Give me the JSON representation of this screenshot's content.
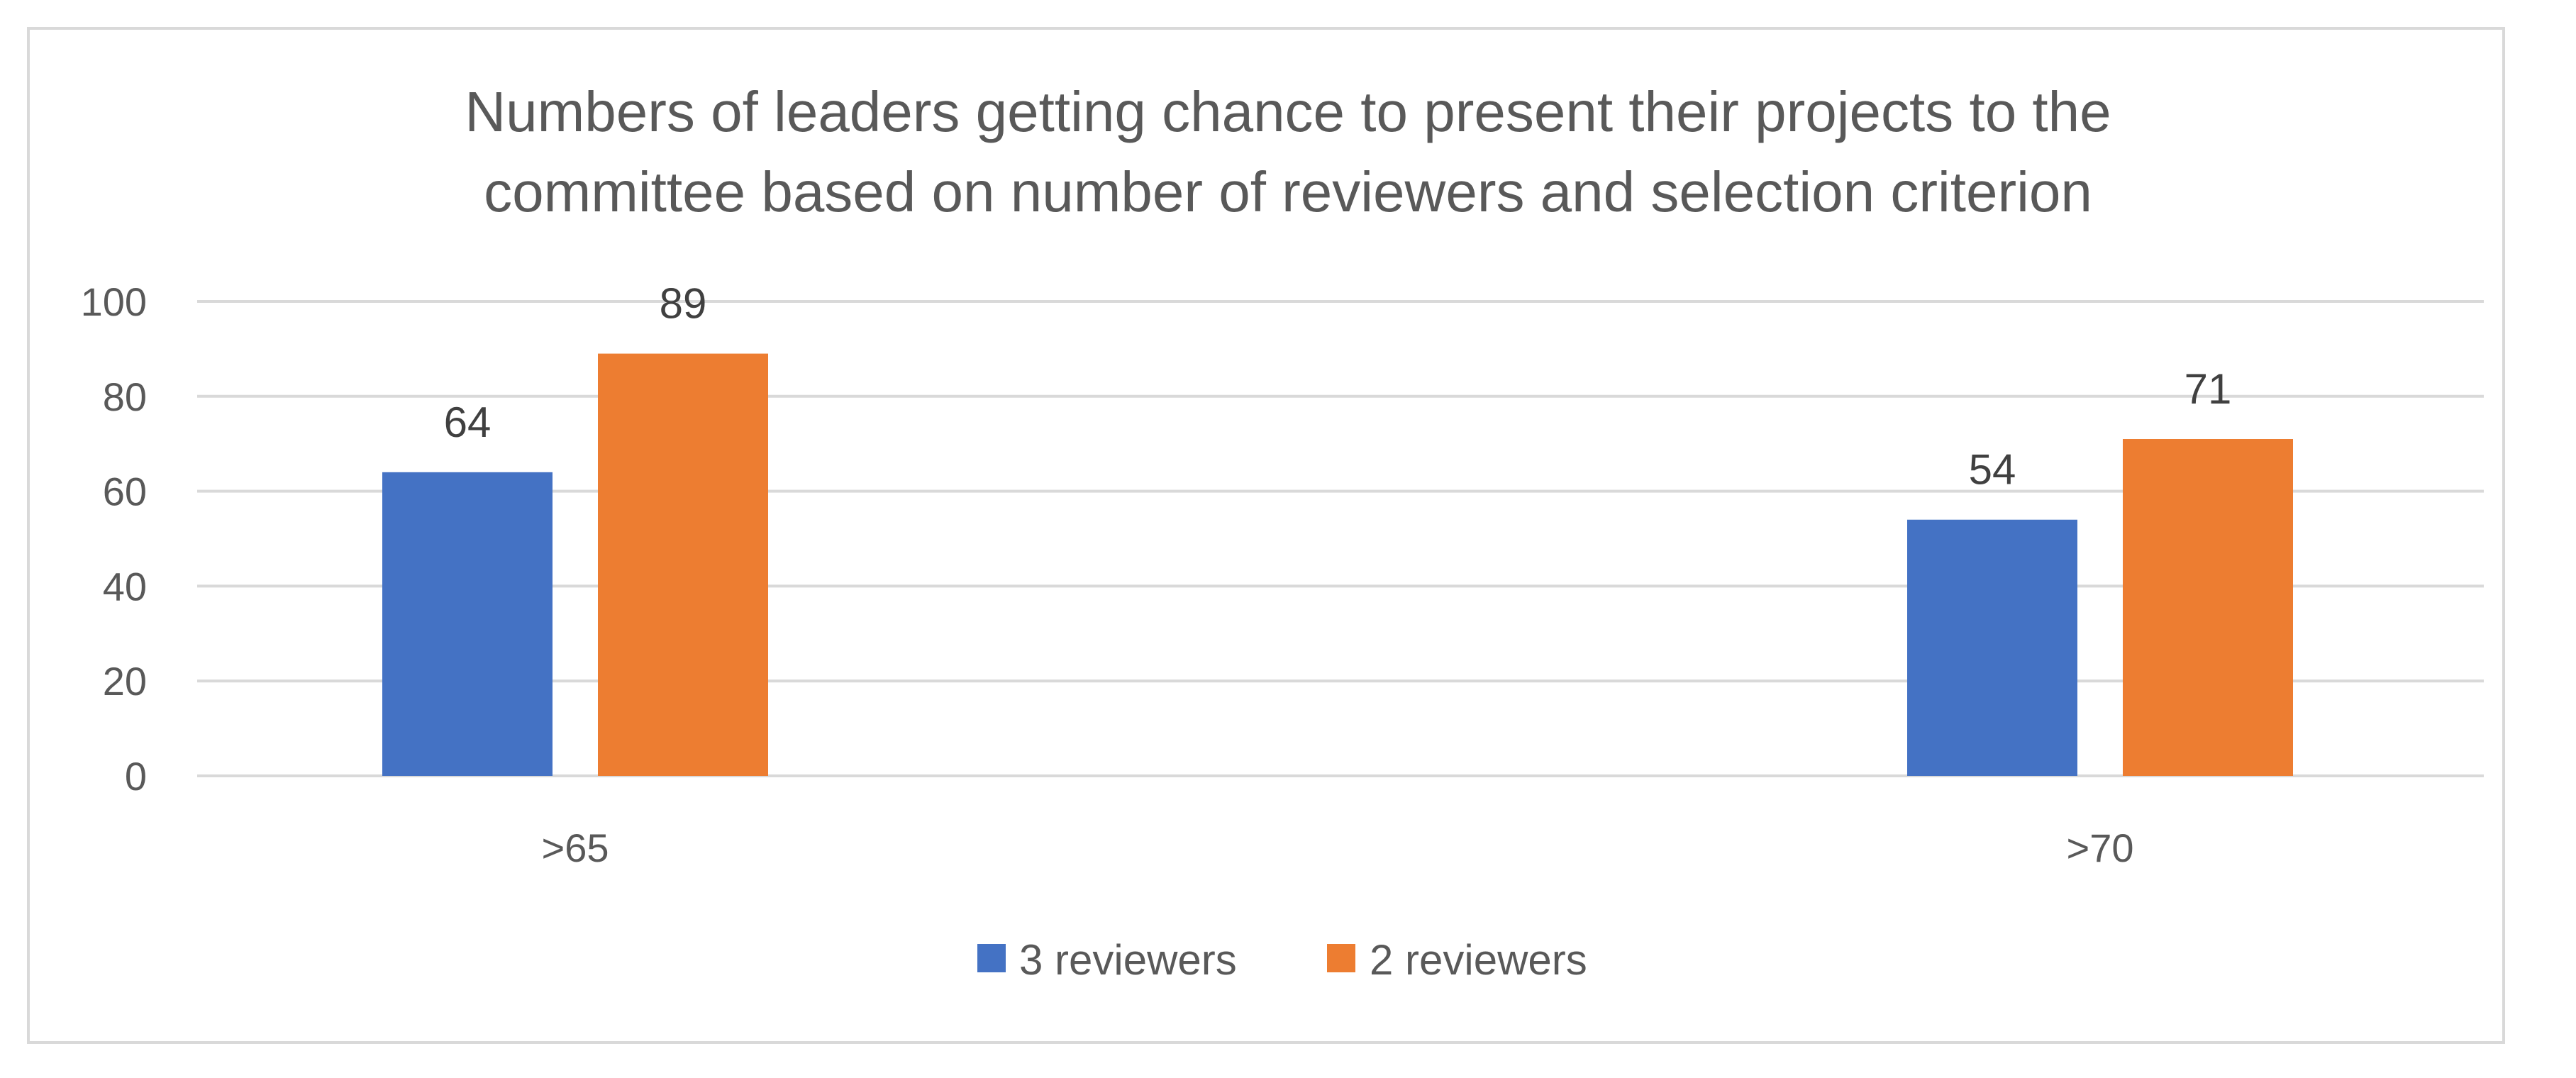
{
  "chart_data": {
    "type": "bar",
    "title_lines": [
      "Numbers of leaders getting chance to present their projects to the",
      "committee based on number of reviewers and selection criterion"
    ],
    "categories": [
      ">65",
      ">70"
    ],
    "series": [
      {
        "name": "3 reviewers",
        "values": [
          64,
          54
        ],
        "color": "#4472C4"
      },
      {
        "name": "2 reviewers",
        "values": [
          89,
          71
        ],
        "color": "#ED7D31"
      }
    ],
    "yticks": [
      0,
      20,
      40,
      60,
      80,
      100
    ],
    "ylim": [
      0,
      100
    ],
    "grid": true,
    "legend_position": "bottom",
    "data_labels": true
  }
}
